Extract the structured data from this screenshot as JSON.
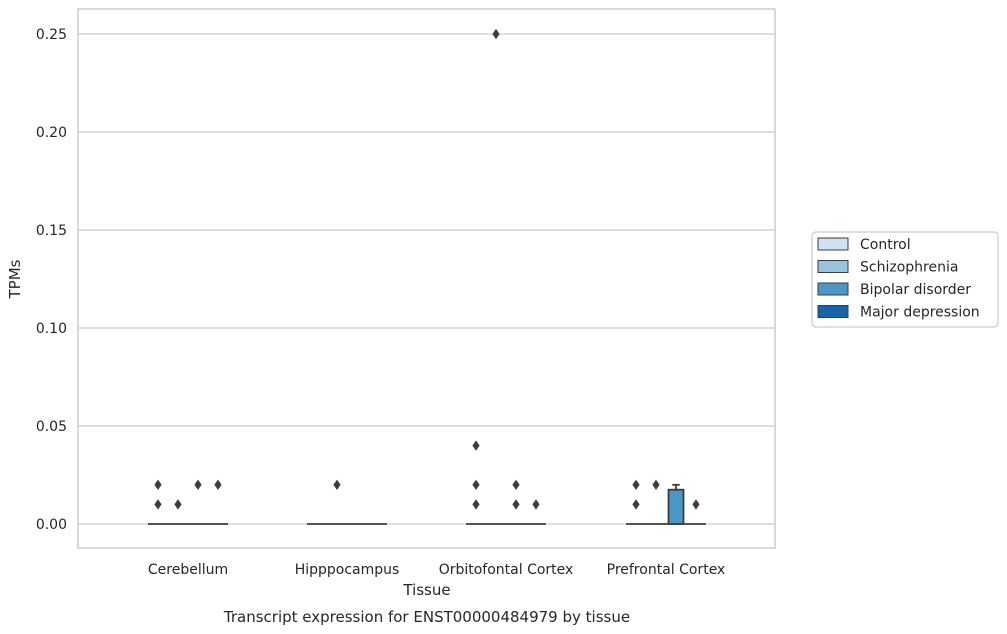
{
  "chart_data": {
    "type": "box",
    "title": "Transcript expression for ENST00000484979 by tissue",
    "xlabel": "Tissue",
    "ylabel": "TPMs",
    "ylim": [
      -0.0125,
      0.2625
    ],
    "yticks": [
      0.0,
      0.05,
      0.1,
      0.15,
      0.2,
      0.25
    ],
    "ytick_labels": [
      "0.00",
      "0.05",
      "0.10",
      "0.15",
      "0.20",
      "0.25"
    ],
    "grid": "horizontal",
    "legend_position": "right",
    "categories": [
      "Cerebellum",
      "Hipppocampus",
      "Orbitofontal Cortex",
      "Prefrontal Cortex"
    ],
    "series": [
      {
        "name": "Control",
        "color": "#d0e1f2",
        "boxes": [
          {
            "q1": 0,
            "median": 0,
            "q3": 0,
            "whisker_low": 0,
            "whisker_high": 0,
            "outliers": [
              0.01,
              0.02
            ]
          },
          {
            "q1": 0,
            "median": 0,
            "q3": 0,
            "whisker_low": 0,
            "whisker_high": 0,
            "outliers": []
          },
          {
            "q1": 0,
            "median": 0,
            "q3": 0,
            "whisker_low": 0,
            "whisker_high": 0,
            "outliers": [
              0.01,
              0.02,
              0.04
            ]
          },
          {
            "q1": 0,
            "median": 0,
            "q3": 0,
            "whisker_low": 0,
            "whisker_high": 0,
            "outliers": [
              0.01,
              0.02
            ]
          }
        ]
      },
      {
        "name": "Schizophrenia",
        "color": "#94c4df",
        "boxes": [
          {
            "q1": 0,
            "median": 0,
            "q3": 0,
            "whisker_low": 0,
            "whisker_high": 0,
            "outliers": [
              0.01
            ]
          },
          {
            "q1": 0,
            "median": 0,
            "q3": 0,
            "whisker_low": 0,
            "whisker_high": 0,
            "outliers": [
              0.02
            ]
          },
          {
            "q1": 0,
            "median": 0,
            "q3": 0,
            "whisker_low": 0,
            "whisker_high": 0,
            "outliers": [
              0.25
            ]
          },
          {
            "q1": 0,
            "median": 0,
            "q3": 0,
            "whisker_low": 0,
            "whisker_high": 0,
            "outliers": [
              0.02
            ]
          }
        ]
      },
      {
        "name": "Bipolar disorder",
        "color": "#4a98c9",
        "boxes": [
          {
            "q1": 0,
            "median": 0,
            "q3": 0,
            "whisker_low": 0,
            "whisker_high": 0,
            "outliers": [
              0.02
            ]
          },
          {
            "q1": 0,
            "median": 0,
            "q3": 0,
            "whisker_low": 0,
            "whisker_high": 0,
            "outliers": []
          },
          {
            "q1": 0,
            "median": 0,
            "q3": 0,
            "whisker_low": 0,
            "whisker_high": 0,
            "outliers": [
              0.01,
              0.02
            ]
          },
          {
            "q1": 0,
            "median": 0,
            "q3": 0.0175,
            "whisker_low": 0,
            "whisker_high": 0.02,
            "outliers": []
          }
        ]
      },
      {
        "name": "Major depression",
        "color": "#1764ab",
        "boxes": [
          {
            "q1": 0,
            "median": 0,
            "q3": 0,
            "whisker_low": 0,
            "whisker_high": 0,
            "outliers": [
              0.02
            ]
          },
          {
            "q1": 0,
            "median": 0,
            "q3": 0,
            "whisker_low": 0,
            "whisker_high": 0,
            "outliers": []
          },
          {
            "q1": 0,
            "median": 0,
            "q3": 0,
            "whisker_low": 0,
            "whisker_high": 0,
            "outliers": [
              0.01
            ]
          },
          {
            "q1": 0,
            "median": 0,
            "q3": 0,
            "whisker_low": 0,
            "whisker_high": 0,
            "outliers": [
              0.01
            ]
          }
        ]
      }
    ]
  }
}
